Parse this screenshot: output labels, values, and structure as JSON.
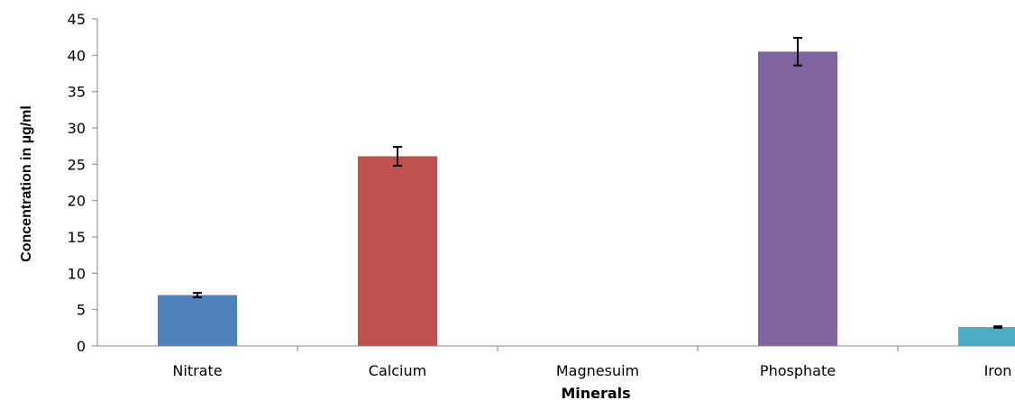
{
  "chart_data": {
    "type": "bar",
    "title": "",
    "xlabel": "Minerals",
    "ylabel": "Concentration in µg/ml",
    "ylim": [
      0,
      45
    ],
    "yticks": [
      0,
      5,
      10,
      15,
      20,
      25,
      30,
      35,
      40,
      45
    ],
    "categories": [
      "Nitrate",
      "Calcium",
      "Magnesuim",
      "Phosphate",
      "Iron"
    ],
    "values": [
      7.0,
      26.1,
      0,
      40.5,
      2.6
    ],
    "errors": [
      0.3,
      1.3,
      0,
      1.9,
      0.1
    ],
    "colors": [
      "#4F81BD",
      "#C0504D",
      "#9BBB59",
      "#8064A2",
      "#4BACC6"
    ],
    "grid": false,
    "legend": "none"
  }
}
